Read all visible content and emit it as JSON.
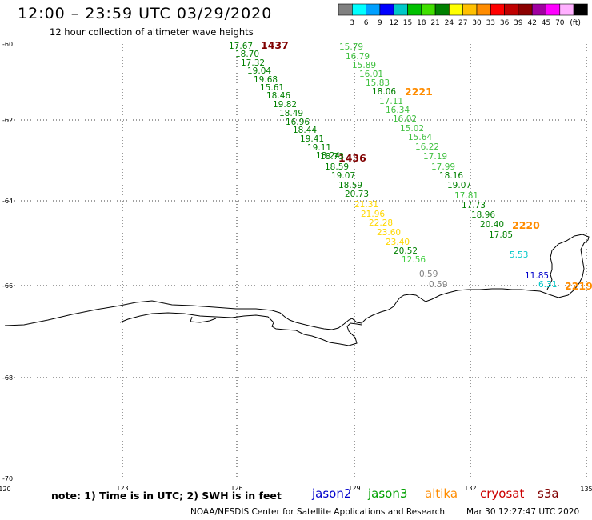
{
  "header": {
    "title": "12:00 – 23:59 UTC 03/29/2020",
    "subtitle": "12 hour collection of altimeter wave heights"
  },
  "scale": {
    "unit": "(ft)",
    "colors": [
      "#808080",
      "#00ffff",
      "#00a0ff",
      "#0000ff",
      "#00c8c8",
      "#00c000",
      "#40e000",
      "#008000",
      "#ffff00",
      "#ffc000",
      "#ff8c00",
      "#ff0000",
      "#c00000",
      "#8b0000",
      "#a000a0",
      "#ff00ff",
      "#ffb0ff",
      "#000000"
    ],
    "labels": [
      "3",
      "6",
      "9",
      "12",
      "15",
      "18",
      "21",
      "24",
      "27",
      "30",
      "33",
      "36",
      "39",
      "42",
      "45",
      "70"
    ]
  },
  "axes": {
    "lat_labels": [
      "-60",
      "-62",
      "-64",
      "-66",
      "-68",
      "-70"
    ],
    "lon_labels": [
      "120",
      "123",
      "126",
      "129",
      "132",
      "135"
    ]
  },
  "passes": [
    {
      "label": "1437",
      "color": "#800000"
    },
    {
      "label": "1436",
      "color": "#800000"
    },
    {
      "label": "2221",
      "color": "#ff8c00"
    },
    {
      "label": "2220",
      "color": "#ff8c00"
    },
    {
      "label": "2219",
      "color": "#ff8c00"
    }
  ],
  "observations": [
    {
      "v": "17.67",
      "c": "#008000"
    },
    {
      "v": "18.70",
      "c": "#008000"
    },
    {
      "v": "17.32",
      "c": "#008000"
    },
    {
      "v": "19.04",
      "c": "#008000"
    },
    {
      "v": "19.68",
      "c": "#008000"
    },
    {
      "v": "15.61",
      "c": "#008000"
    },
    {
      "v": "18.46",
      "c": "#008000"
    },
    {
      "v": "19.82",
      "c": "#008000"
    },
    {
      "v": "18.49",
      "c": "#008000"
    },
    {
      "v": "16.96",
      "c": "#008000"
    },
    {
      "v": "18.44",
      "c": "#008000"
    },
    {
      "v": "19.41",
      "c": "#008000"
    },
    {
      "v": "19.11",
      "c": "#008000"
    },
    {
      "v": "18.24",
      "c": "#008000"
    },
    {
      "v": "18.73",
      "c": "#008000"
    },
    {
      "v": "18.59",
      "c": "#008000"
    },
    {
      "v": "19.07",
      "c": "#008000"
    },
    {
      "v": "18.59",
      "c": "#008000"
    },
    {
      "v": "20.73",
      "c": "#008000"
    },
    {
      "v": "21.31",
      "c": "#ffd700"
    },
    {
      "v": "21.96",
      "c": "#ffd700"
    },
    {
      "v": "22.28",
      "c": "#ffd700"
    },
    {
      "v": "23.60",
      "c": "#ffd700"
    },
    {
      "v": "23.40",
      "c": "#ffd700"
    },
    {
      "v": "20.52",
      "c": "#008000"
    },
    {
      "v": "12.56",
      "c": "#40d040"
    },
    {
      "v": "0.59",
      "c": "#808080"
    },
    {
      "v": "0.59",
      "c": "#808080"
    },
    {
      "v": "15.79",
      "c": "#40c040"
    },
    {
      "v": "16.79",
      "c": "#40c040"
    },
    {
      "v": "15.89",
      "c": "#40c040"
    },
    {
      "v": "16.01",
      "c": "#40c040"
    },
    {
      "v": "15.83",
      "c": "#40c040"
    },
    {
      "v": "18.06",
      "c": "#008000"
    },
    {
      "v": "17.11",
      "c": "#40c040"
    },
    {
      "v": "16.34",
      "c": "#40c040"
    },
    {
      "v": "16.02",
      "c": "#40c040"
    },
    {
      "v": "15.02",
      "c": "#40c040"
    },
    {
      "v": "15.64",
      "c": "#40c040"
    },
    {
      "v": "16.22",
      "c": "#40c040"
    },
    {
      "v": "17.19",
      "c": "#40c040"
    },
    {
      "v": "17.99",
      "c": "#40c040"
    },
    {
      "v": "18.16",
      "c": "#008000"
    },
    {
      "v": "19.07",
      "c": "#008000"
    },
    {
      "v": "17.81",
      "c": "#40c040"
    },
    {
      "v": "17.73",
      "c": "#008000"
    },
    {
      "v": "18.96",
      "c": "#008000"
    },
    {
      "v": "20.40",
      "c": "#008000"
    },
    {
      "v": "17.85",
      "c": "#008000"
    },
    {
      "v": "5.53",
      "c": "#00c8c8"
    },
    {
      "v": "11.85",
      "c": "#0000cc"
    },
    {
      "v": "6.31",
      "c": "#00c8c8"
    }
  ],
  "footer": {
    "note": "note:  1) Time is in UTC;  2) SWH is in feet",
    "satellites": [
      {
        "name": "jason2",
        "color": "#0000cc"
      },
      {
        "name": "jason3",
        "color": "#00a000"
      },
      {
        "name": "altika",
        "color": "#ff8c00"
      },
      {
        "name": "cryosat",
        "color": "#cc0000"
      },
      {
        "name": "s3a",
        "color": "#800000"
      }
    ],
    "credit": "NOAA/NESDIS Center for Satellite Applications and Research",
    "timestamp": "Mar 30 12:27:47 UTC 2020"
  }
}
